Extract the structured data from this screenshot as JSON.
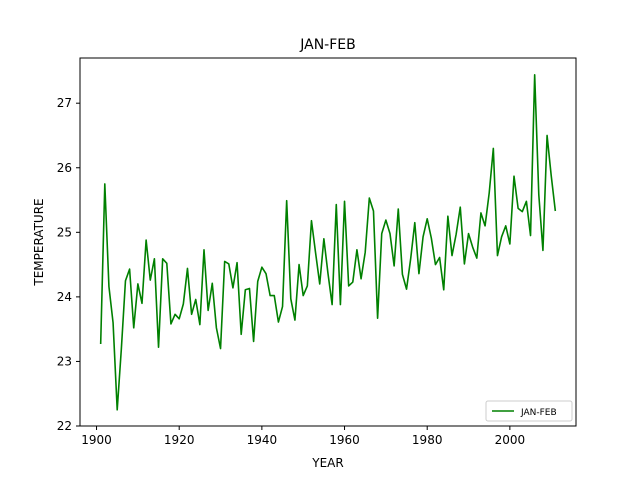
{
  "chart_data": {
    "type": "line",
    "title": "JAN-FEB",
    "xlabel": "YEAR",
    "ylabel": "TEMPERATURE",
    "xlim": [
      1896,
      2016
    ],
    "ylim": [
      22,
      27.7
    ],
    "xticks": [
      1900,
      1920,
      1940,
      1960,
      1980,
      2000
    ],
    "yticks": [
      22,
      23,
      24,
      25,
      26,
      27
    ],
    "grid": false,
    "legend_position": "lower right",
    "series": [
      {
        "name": "JAN-FEB",
        "color": "#008000",
        "x": [
          1901,
          1902,
          1903,
          1904,
          1905,
          1906,
          1907,
          1908,
          1909,
          1910,
          1911,
          1912,
          1913,
          1914,
          1915,
          1916,
          1917,
          1918,
          1919,
          1920,
          1921,
          1922,
          1923,
          1924,
          1925,
          1926,
          1927,
          1928,
          1929,
          1930,
          1931,
          1932,
          1933,
          1934,
          1935,
          1936,
          1937,
          1938,
          1939,
          1940,
          1941,
          1942,
          1943,
          1944,
          1945,
          1946,
          1947,
          1948,
          1949,
          1950,
          1951,
          1952,
          1953,
          1954,
          1955,
          1956,
          1957,
          1958,
          1959,
          1960,
          1961,
          1962,
          1963,
          1964,
          1965,
          1966,
          1967,
          1968,
          1969,
          1970,
          1971,
          1972,
          1973,
          1974,
          1975,
          1976,
          1977,
          1978,
          1979,
          1980,
          1981,
          1982,
          1983,
          1984,
          1985,
          1986,
          1987,
          1988,
          1989,
          1990,
          1991,
          1992,
          1993,
          1994,
          1995,
          1996,
          1997,
          1998,
          1999,
          2000,
          2001,
          2002,
          2003,
          2004,
          2005,
          2006,
          2007,
          2008,
          2009,
          2010,
          2011
        ],
        "y": [
          23.27,
          25.75,
          24.16,
          23.6,
          22.25,
          23.19,
          24.25,
          24.43,
          23.52,
          24.2,
          23.9,
          24.88,
          24.26,
          24.59,
          23.22,
          24.59,
          24.52,
          23.58,
          23.73,
          23.66,
          23.89,
          24.44,
          23.73,
          23.96,
          23.57,
          24.73,
          23.79,
          24.21,
          23.52,
          23.2,
          24.55,
          24.51,
          24.14,
          24.53,
          23.42,
          24.11,
          24.13,
          23.31,
          24.24,
          24.46,
          24.36,
          24.02,
          24.02,
          23.61,
          23.85,
          25.49,
          23.97,
          23.64,
          24.5,
          24.02,
          24.17,
          25.18,
          24.68,
          24.2,
          24.9,
          24.36,
          23.88,
          25.43,
          23.88,
          25.48,
          24.17,
          24.23,
          24.73,
          24.28,
          24.69,
          25.53,
          25.33,
          23.67,
          24.98,
          25.19,
          24.98,
          24.48,
          25.36,
          24.35,
          24.12,
          24.59,
          25.15,
          24.36,
          24.93,
          25.21,
          24.91,
          24.5,
          24.61,
          24.11,
          25.25,
          24.64,
          24.97,
          25.39,
          24.51,
          24.98,
          24.77,
          24.6,
          25.3,
          25.1,
          25.61,
          26.3,
          24.64,
          24.93,
          25.1,
          24.82,
          25.87,
          25.37,
          25.32,
          25.48,
          24.95,
          27.44,
          25.58,
          24.72,
          26.5,
          25.88,
          25.33
        ]
      }
    ]
  }
}
